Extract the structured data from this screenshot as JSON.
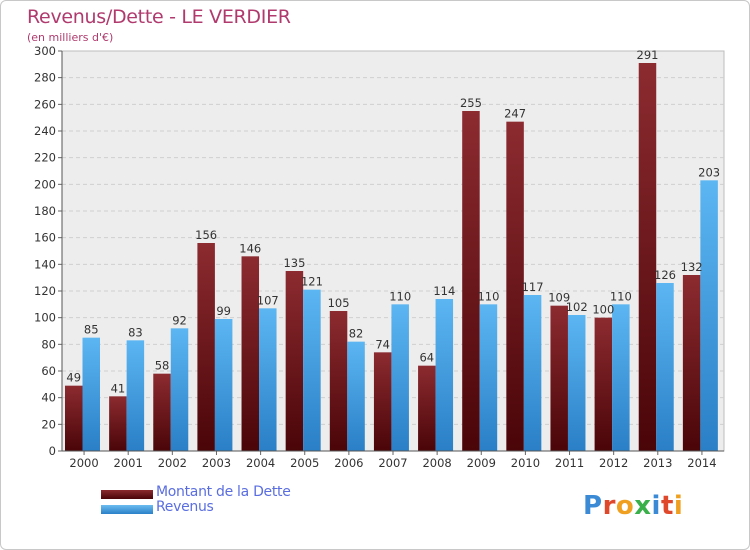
{
  "header": {
    "title": "Revenus/Dette - LE VERDIER",
    "subtitle": "(en milliers d'€)"
  },
  "chart_data": {
    "type": "bar",
    "categories": [
      "2000",
      "2001",
      "2002",
      "2003",
      "2004",
      "2005",
      "2006",
      "2007",
      "2008",
      "2009",
      "2010",
      "2011",
      "2012",
      "2013",
      "2014"
    ],
    "series": [
      {
        "name": "Montant de la Dette",
        "color": "#7a1a1e",
        "values": [
          49,
          41,
          58,
          156,
          146,
          135,
          105,
          74,
          64,
          255,
          247,
          109,
          100,
          291,
          132
        ]
      },
      {
        "name": "Revenus",
        "color": "#3a9de0",
        "values": [
          85,
          83,
          92,
          99,
          107,
          121,
          82,
          110,
          114,
          110,
          117,
          102,
          110,
          126,
          203
        ]
      }
    ],
    "yticks": [
      0,
      20,
      40,
      60,
      80,
      100,
      120,
      140,
      160,
      180,
      200,
      220,
      240,
      260,
      280,
      300
    ],
    "ylim": [
      0,
      300
    ],
    "grid": true,
    "legend_position": "bottom-left"
  },
  "legend": {
    "items": [
      {
        "label": "Montant de la Dette",
        "color": "#7a1a1e"
      },
      {
        "label": "Revenus",
        "color": "#3a9de0"
      }
    ]
  },
  "logo": {
    "letters": [
      "P",
      "r",
      "o",
      "x",
      "i",
      "t",
      "i"
    ],
    "colors": [
      "#3a8ad6",
      "#e0482c",
      "#f0a020",
      "#3ab04a",
      "#3a8ad6",
      "#e0482c",
      "#f0a020"
    ]
  }
}
